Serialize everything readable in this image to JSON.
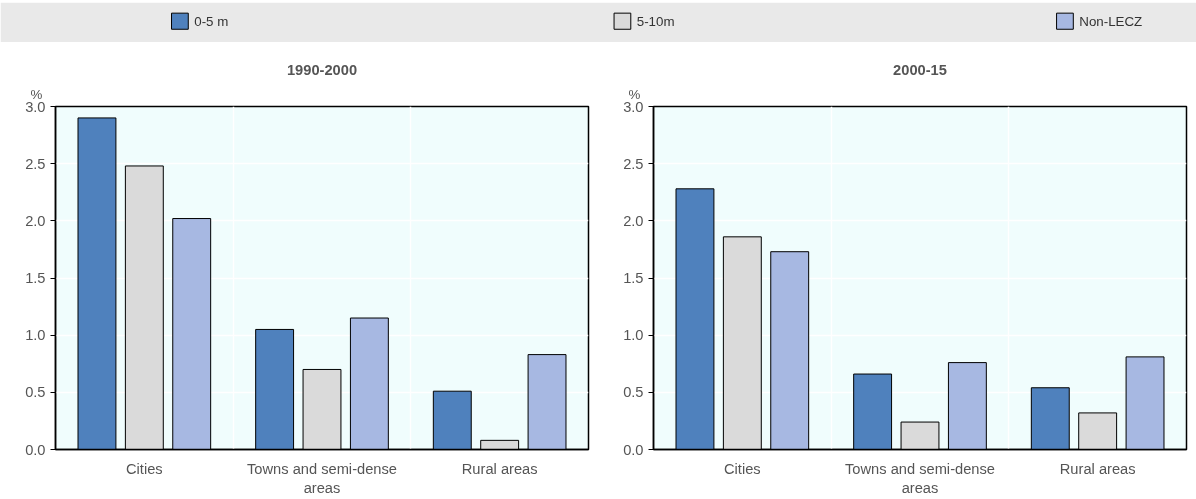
{
  "chart_data": [
    {
      "type": "bar",
      "title": "1990-2000",
      "ylabel": "%",
      "categories": [
        "Cities",
        "Towns and semi-dense areas",
        "Rural areas"
      ],
      "series": [
        {
          "name": "0-5 m",
          "color": "#4f81bd",
          "values": [
            2.9,
            1.05,
            0.51
          ]
        },
        {
          "name": "5-10m",
          "color": "#dadada",
          "values": [
            2.48,
            0.7,
            0.08
          ]
        },
        {
          "name": "Non-LECZ",
          "color": "#a7b8e2",
          "values": [
            2.02,
            1.15,
            0.83
          ]
        }
      ],
      "ylim": [
        0,
        3
      ],
      "yticks": [
        {
          "value": 0,
          "label": "0.0"
        },
        0.5,
        {
          "value": 1,
          "label": "1.0"
        },
        1.5,
        {
          "value": 2,
          "label": "2.0"
        },
        2.5,
        {
          "value": 3,
          "label": "3.0"
        }
      ],
      "grid": true,
      "legend": "top"
    },
    {
      "type": "bar",
      "title": "2000-15",
      "ylabel": "%",
      "categories": [
        "Cities",
        "Towns and semi-dense areas",
        "Rural areas"
      ],
      "series": [
        {
          "color": "#4f81bd",
          "values": [
            2.28,
            0.66,
            0.54
          ]
        },
        {
          "color": "#dadada",
          "values": [
            1.86,
            0.24,
            0.32
          ]
        },
        {
          "color": "#a7b8e2",
          "values": [
            1.73,
            0.76,
            0.81
          ]
        }
      ],
      "ylim": [
        0,
        3
      ],
      "yticks": [
        {
          "value": 0,
          "label": "0.0"
        },
        0.5,
        {
          "value": 1,
          "label": "1.0"
        },
        1.5,
        {
          "value": 2,
          "label": "2.0"
        },
        2.5,
        {
          "value": 3,
          "label": "3.0"
        }
      ],
      "grid": true
    }
  ]
}
